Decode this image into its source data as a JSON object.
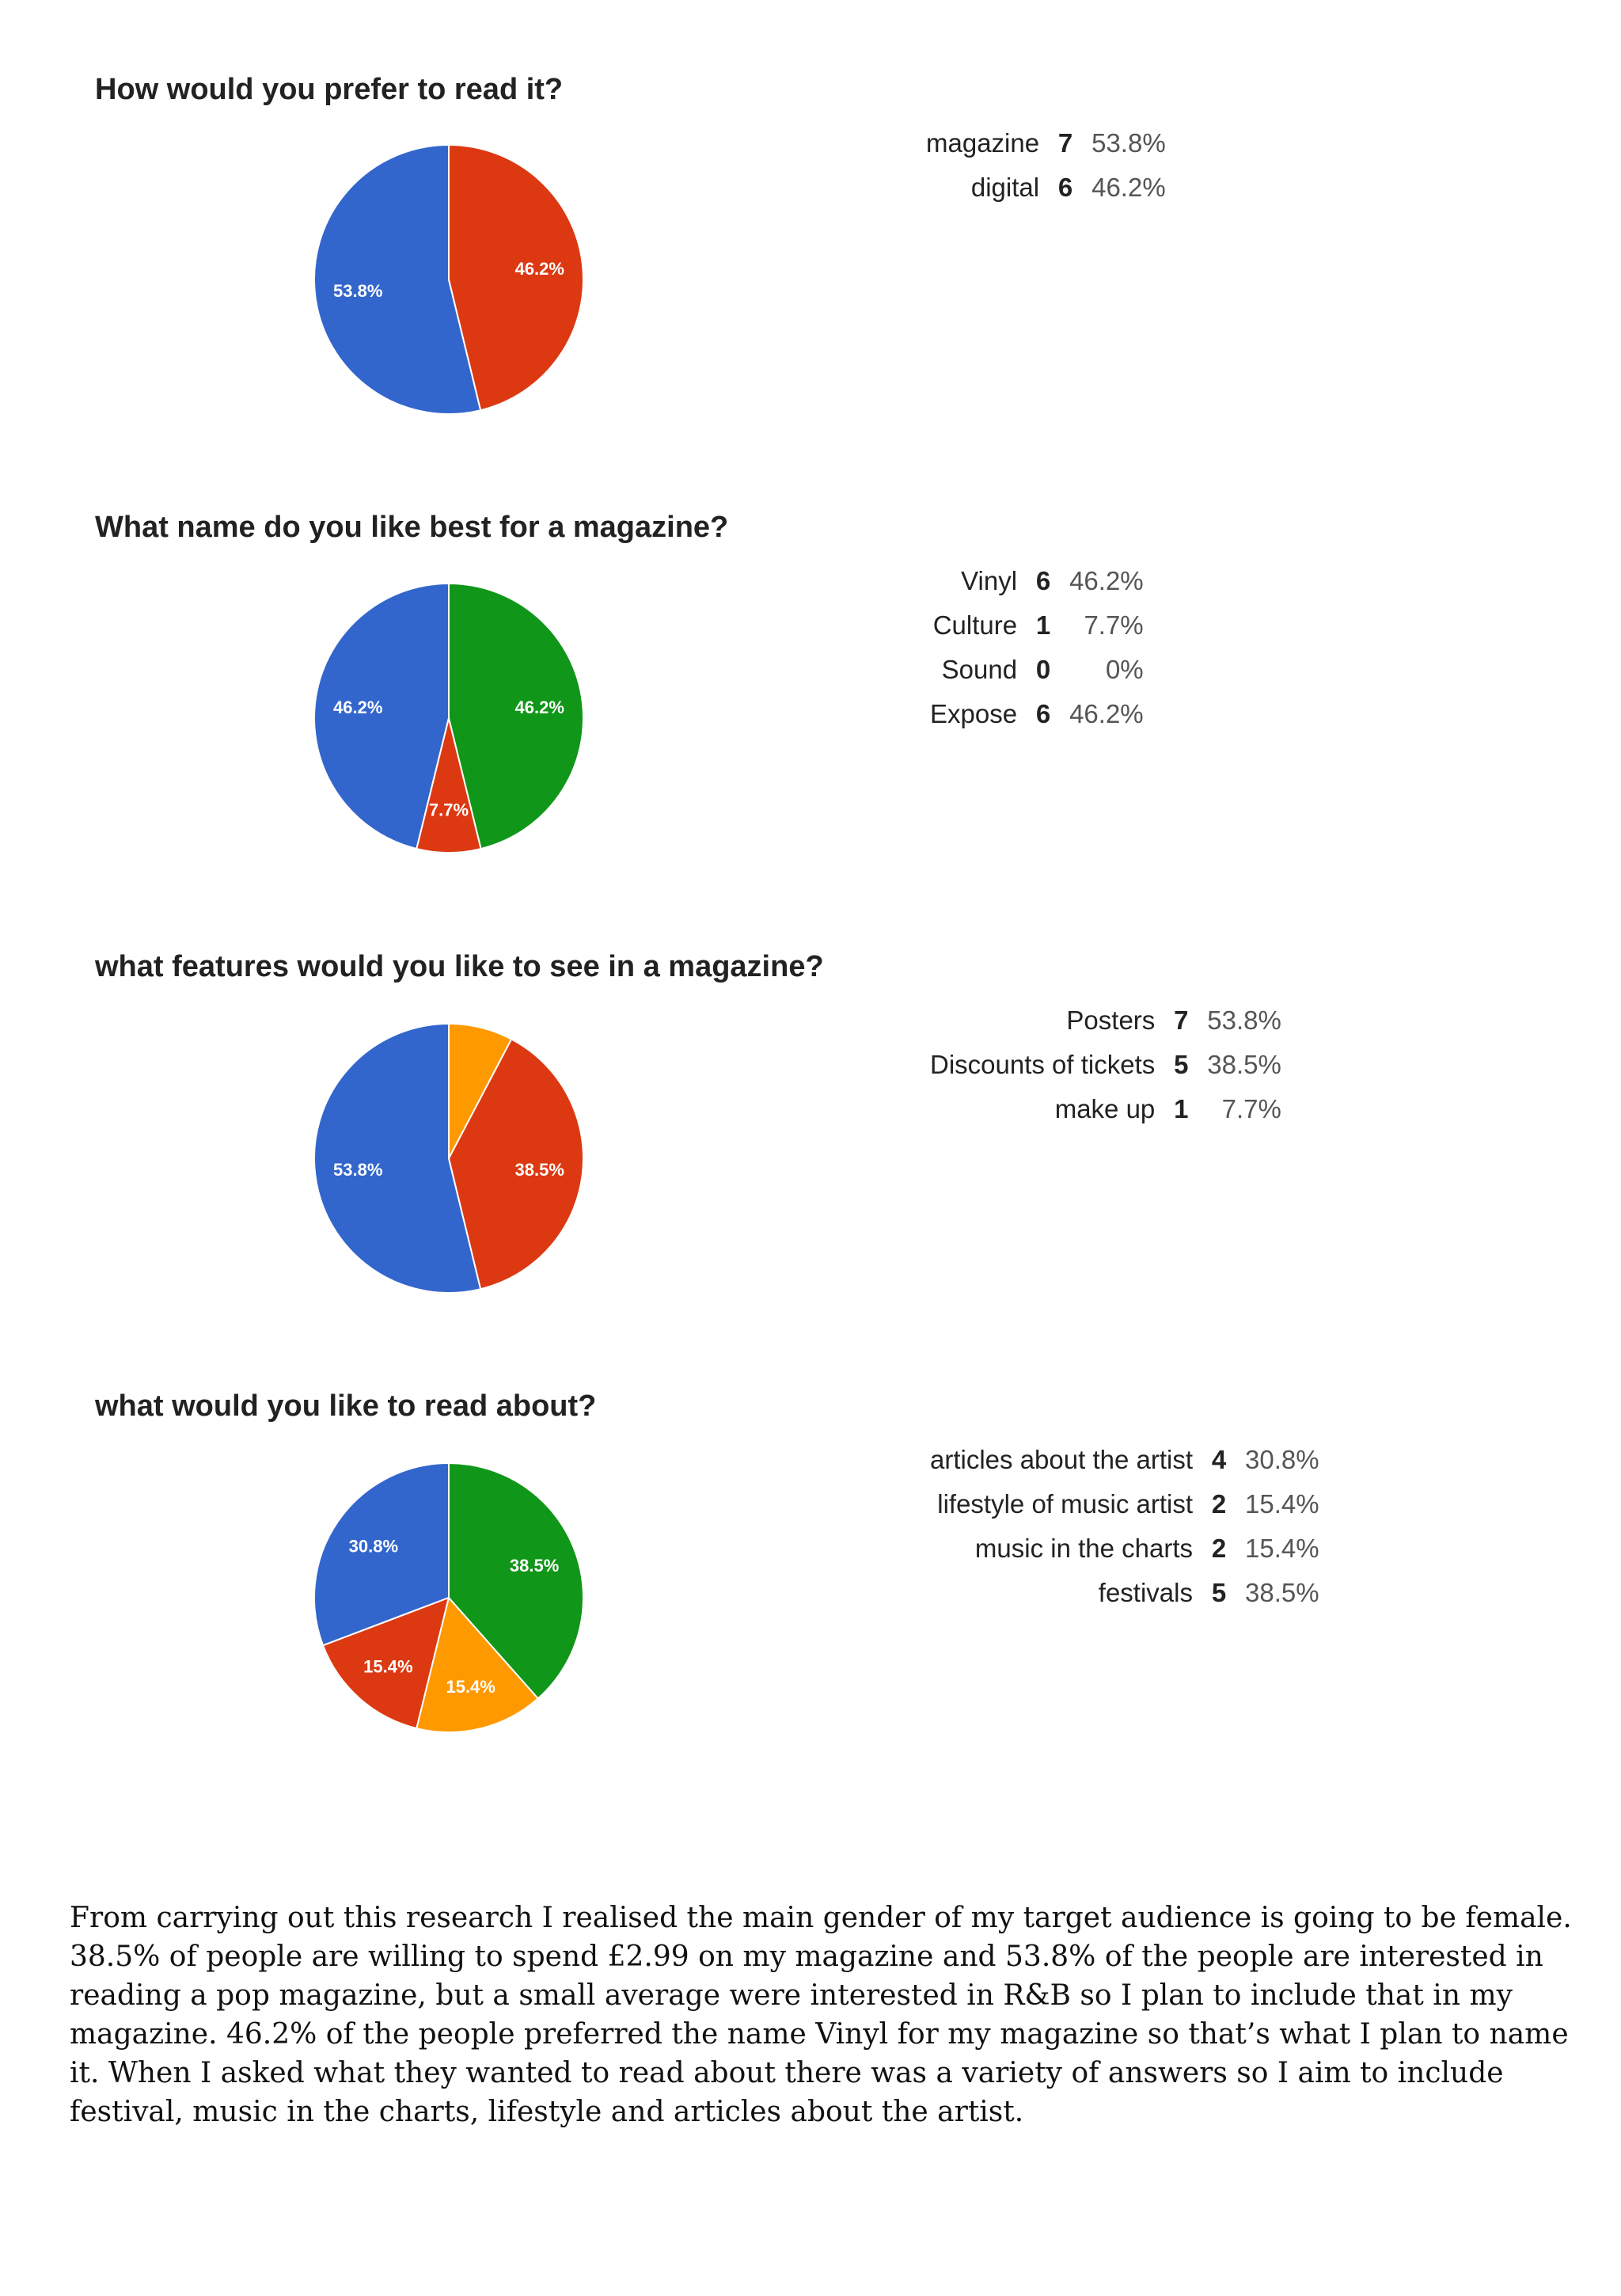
{
  "chart_data": [
    {
      "type": "pie",
      "title": "How would you prefer to read it?",
      "slices": [
        {
          "label": "magazine",
          "count": 7,
          "percent": 53.8,
          "percent_text": "53.8%",
          "color": "#3366cc"
        },
        {
          "label": "digital",
          "count": 6,
          "percent": 46.2,
          "percent_text": "46.2%",
          "color": "#dc3912"
        }
      ],
      "slice_labels_shown": [
        "53.8%",
        "46.2%"
      ]
    },
    {
      "type": "pie",
      "title": "What name do you like best for a magazine?",
      "slices": [
        {
          "label": "Vinyl",
          "count": 6,
          "percent": 46.2,
          "percent_text": "46.2%",
          "color": "#3366cc"
        },
        {
          "label": "Culture",
          "count": 1,
          "percent": 7.7,
          "percent_text": "7.7%",
          "color": "#dc3912"
        },
        {
          "label": "Sound",
          "count": 0,
          "percent": 0,
          "percent_text": "0%",
          "color": "#ff9900"
        },
        {
          "label": "Expose",
          "count": 6,
          "percent": 46.2,
          "percent_text": "46.2%",
          "color": "#109618"
        }
      ],
      "slice_labels_shown": [
        "46.2%",
        "7.7%",
        "",
        "46.2%"
      ]
    },
    {
      "type": "pie",
      "title": "what features would you like to see in a magazine?",
      "slices": [
        {
          "label": "Posters",
          "count": 7,
          "percent": 53.8,
          "percent_text": "53.8%",
          "color": "#3366cc"
        },
        {
          "label": "Discounts of tickets",
          "count": 5,
          "percent": 38.5,
          "percent_text": "38.5%",
          "color": "#dc3912"
        },
        {
          "label": "make up",
          "count": 1,
          "percent": 7.7,
          "percent_text": "7.7%",
          "color": "#ff9900"
        }
      ],
      "slice_labels_shown": [
        "53.8%",
        "38.5%",
        ""
      ]
    },
    {
      "type": "pie",
      "title": "what would you like to read about?",
      "slices": [
        {
          "label": "articles about the artist",
          "count": 4,
          "percent": 30.8,
          "percent_text": "30.8%",
          "color": "#3366cc"
        },
        {
          "label": "lifestyle of music artist",
          "count": 2,
          "percent": 15.4,
          "percent_text": "15.4%",
          "color": "#dc3912"
        },
        {
          "label": "music in the charts",
          "count": 2,
          "percent": 15.4,
          "percent_text": "15.4%",
          "color": "#ff9900"
        },
        {
          "label": "festivals",
          "count": 5,
          "percent": 38.5,
          "percent_text": "38.5%",
          "color": "#109618"
        }
      ],
      "slice_labels_shown": [
        "30.8%",
        "15.4%",
        "15.4%",
        "38.5%"
      ]
    }
  ],
  "conclusion_lines": [
    "From carrying out this research I realised the main gender of my target audience is going to be female.",
    "38.5% of people are willing to spend £2.99 on my magazine and 53.8% of the people are interested in",
    "reading a pop magazine, but a small average were interested in R&B so I plan to include that in my",
    "magazine. 46.2% of the people preferred the name Vinyl for my magazine so that’s what I  plan to name",
    "it. When I asked what they wanted to read about there was a variety of answers so I aim to include",
    "festival, music in the charts, lifestyle and articles about the artist."
  ]
}
